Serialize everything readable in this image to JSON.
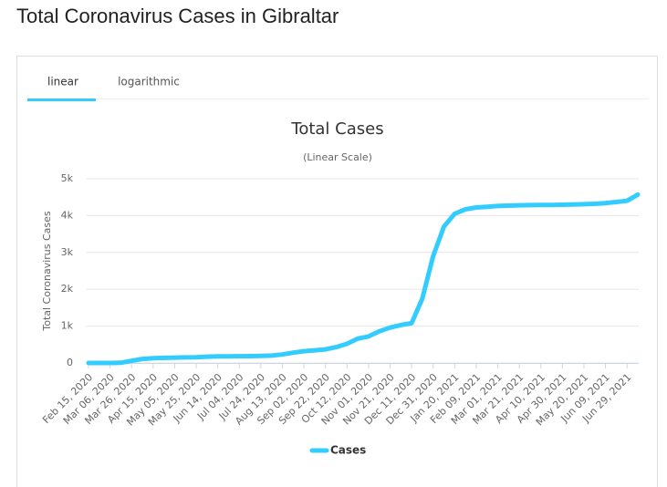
{
  "header": {
    "title": "Total Coronavirus Cases in Gibraltar"
  },
  "tabs": [
    "linear",
    "logarithmic"
  ],
  "chart_data": {
    "type": "line",
    "title": "Total Cases",
    "subtitle": "(Linear Scale)",
    "y_label": "Total Coronavirus Cases",
    "categories": [
      "Feb 15, 2020",
      null,
      "Mar 06, 2020",
      null,
      "Mar 26, 2020",
      null,
      "Apr 15, 2020",
      null,
      "May 05, 2020",
      null,
      "May 25, 2020",
      null,
      "Jun 14, 2020",
      null,
      "Jul 04, 2020",
      null,
      "Jul 24, 2020",
      null,
      "Aug 13, 2020",
      null,
      "Sep 02, 2020",
      null,
      "Sep 22, 2020",
      null,
      "Oct 12, 2020",
      null,
      "Nov 01, 2020",
      null,
      "Nov 21, 2020",
      null,
      "Dec 11, 2020",
      null,
      "Dec 31, 2020",
      null,
      "Jan 20, 2021",
      null,
      "Feb 09, 2021",
      null,
      "Mar 01, 2021",
      null,
      "Mar 21, 2021",
      null,
      "Apr 10, 2021",
      null,
      "Apr 30, 2021",
      null,
      "May 20, 2021",
      null,
      "Jun 09, 2021",
      null,
      "Jun 29, 2021",
      null
    ],
    "series": [
      {
        "name": "Cases",
        "color": "#33ccff",
        "values": [
          0,
          0,
          0,
          5,
          60,
          110,
          130,
          138,
          145,
          150,
          155,
          170,
          177,
          180,
          182,
          185,
          190,
          200,
          230,
          280,
          320,
          345,
          370,
          430,
          520,
          660,
          720,
          860,
          960,
          1030,
          1080,
          1750,
          2900,
          3700,
          4050,
          4170,
          4220,
          4240,
          4260,
          4270,
          4280,
          4285,
          4290,
          4290,
          4295,
          4300,
          4310,
          4320,
          4340,
          4370,
          4400,
          4570
        ]
      }
    ],
    "ylim": [
      0,
      5000
    ],
    "yticks": [
      0,
      {
        "value": 1000,
        "label": "1k"
      },
      {
        "value": 2000,
        "label": "2k"
      },
      {
        "value": 3000,
        "label": "3k"
      },
      {
        "value": 4000,
        "label": "4k"
      },
      {
        "value": 5000,
        "label": "5k"
      }
    ],
    "grid": true
  }
}
